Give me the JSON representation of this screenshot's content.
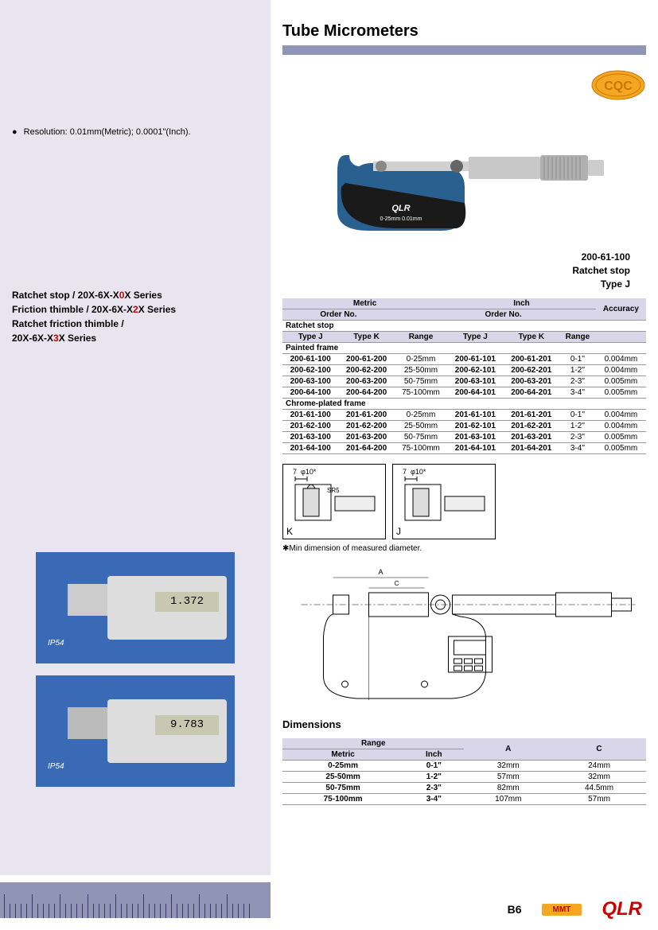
{
  "title": "Tube Micrometers",
  "bullet_text": "Resolution: 0.01mm(Metric); 0.0001\"(Inch).",
  "series": {
    "line1_a": "Ratchet stop /  20X-6X-X",
    "line1_hl": "0",
    "line1_b": "X Series",
    "line2_a": "Friction thimble / 20X-6X-X",
    "line2_hl": "2",
    "line2_b": "X Series",
    "line3": "Ratchet friction thimble /",
    "line4_a": "20X-6X-X",
    "line4_hl": "3",
    "line4_b": "X Series"
  },
  "product": {
    "code": "200-61-100",
    "stop": "Ratchet  stop",
    "type": "Type J",
    "qlr": "QLR",
    "range_label": "0-25mm  0.01mm"
  },
  "table1": {
    "hdr_metric": "Metric",
    "hdr_inch": "Inch",
    "hdr_acc": "Accuracy",
    "hdr_order1": "Order No.",
    "hdr_order2": "Order No.",
    "grp1": "Ratchet stop",
    "sub_j": "Type J",
    "sub_k": "Type K",
    "sub_range": "Range",
    "grp2": "Painted frame",
    "rows1": [
      [
        "200-61-100",
        "200-61-200",
        "0-25mm",
        "200-61-101",
        "200-61-201",
        "0-1\"",
        "0.004mm"
      ],
      [
        "200-62-100",
        "200-62-200",
        "25-50mm",
        "200-62-101",
        "200-62-201",
        "1-2\"",
        "0.004mm"
      ],
      [
        "200-63-100",
        "200-63-200",
        "50-75mm",
        "200-63-101",
        "200-63-201",
        "2-3\"",
        "0.005mm"
      ],
      [
        "200-64-100",
        "200-64-200",
        "75-100mm",
        "200-64-101",
        "200-64-201",
        "3-4\"",
        "0.005mm"
      ]
    ],
    "grp3": "Chrome-plated frame",
    "rows2": [
      [
        "201-61-100",
        "201-61-200",
        "0-25mm",
        "201-61-101",
        "201-61-201",
        "0-1\"",
        "0.004mm"
      ],
      [
        "201-62-100",
        "201-62-200",
        "25-50mm",
        "201-62-101",
        "201-62-201",
        "1-2\"",
        "0.004mm"
      ],
      [
        "201-63-100",
        "201-63-200",
        "50-75mm",
        "201-63-101",
        "201-63-201",
        "2-3\"",
        "0.005mm"
      ],
      [
        "201-64-100",
        "201-64-200",
        "75-100mm",
        "201-64-101",
        "201-64-201",
        "3-4\"",
        "0.005mm"
      ]
    ]
  },
  "diag": {
    "k_label": "K",
    "j_label": "J",
    "dim7": "7",
    "phi10": "φ10",
    "sr5": "SR5",
    "star": "*"
  },
  "note": "Min dimension of measured diameter.",
  "drawing": {
    "a": "A",
    "c": "C"
  },
  "dim_title": "Dimensions",
  "table2": {
    "hdr_range": "Range",
    "hdr_a": "A",
    "hdr_c": "C",
    "hdr_metric": "Metric",
    "hdr_inch": "Inch",
    "rows": [
      [
        "0-25mm",
        "0-1\"",
        "32mm",
        "24mm"
      ],
      [
        "25-50mm",
        "1-2\"",
        "57mm",
        "32mm"
      ],
      [
        "50-75mm",
        "2-3\"",
        "82mm",
        "44.5mm"
      ],
      [
        "75-100mm",
        "3-4\"",
        "107mm",
        "57mm"
      ]
    ]
  },
  "photos": {
    "ip54": "IP54",
    "lcd1": "1.372",
    "lcd2": "9.783"
  },
  "footer": {
    "page": "B6",
    "mmt": "MMT",
    "qlr": "QLR"
  },
  "colors": {
    "lavender": "#e8e5f0",
    "purple_bar": "#9095b8",
    "red": "#cc0000",
    "yellow": "#fff200",
    "blue": "#3a6ab5",
    "orange": "#f5a623"
  }
}
